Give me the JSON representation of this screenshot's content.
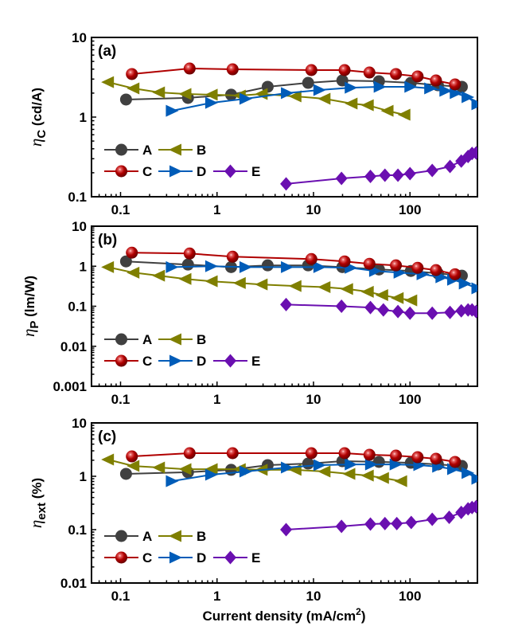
{
  "chart_data": [
    {
      "type": "line",
      "panel": "(a)",
      "ylabel_main": "η",
      "ylabel_sub": "C",
      "ylabel_unit": " (cd/A)",
      "xlabel": "",
      "xscale": "log",
      "yscale": "log",
      "xlim": [
        0.05,
        500
      ],
      "ylim": [
        0.1,
        10
      ],
      "xticks": [
        0.1,
        1,
        10,
        100
      ],
      "xtick_labels": [
        "0.1",
        "1",
        "10",
        "100"
      ],
      "yticks": [
        0.1,
        1,
        10
      ],
      "ytick_labels": [
        "0.1",
        "1",
        "10"
      ],
      "legend": "lower-left",
      "series": [
        {
          "name": "A",
          "color": "#404040",
          "marker": "circle",
          "x": [
            0.114,
            0.5,
            1.4,
            3.35,
            8.8,
            19.9,
            47.7,
            102,
            195,
            345
          ],
          "y": [
            1.66,
            1.74,
            1.91,
            2.4,
            2.69,
            2.88,
            2.82,
            2.69,
            2.51,
            2.4
          ]
        },
        {
          "name": "B",
          "color": "#7f7f00",
          "marker": "triangle-left",
          "x": [
            0.074,
            0.136,
            0.25,
            0.47,
            0.88,
            1.72,
            2.9,
            6.5,
            13.0,
            24.8,
            36.5,
            58.5,
            87.5
          ],
          "y": [
            2.75,
            2.29,
            2.04,
            1.95,
            1.91,
            1.86,
            1.95,
            1.82,
            1.7,
            1.48,
            1.41,
            1.2,
            1.07
          ]
        },
        {
          "name": "C",
          "color": "#b00000",
          "marker": "sphere",
          "x": [
            0.131,
            0.52,
            1.45,
            9.5,
            21.0,
            38.0,
            71.5,
            120,
            186,
            293
          ],
          "y": [
            3.47,
            4.07,
            3.98,
            3.89,
            3.89,
            3.63,
            3.47,
            3.24,
            2.88,
            2.57
          ]
        },
        {
          "name": "D",
          "color": "#005cb8",
          "marker": "triangle-right",
          "x": [
            0.34,
            0.87,
            1.97,
            5.3,
            11.5,
            24.3,
            48.5,
            101,
            162,
            233,
            298,
            395,
            500
          ],
          "y": [
            1.2,
            1.51,
            1.7,
            2.0,
            2.19,
            2.34,
            2.4,
            2.4,
            2.29,
            2.14,
            2.0,
            1.78,
            1.45
          ]
        },
        {
          "name": "E",
          "color": "#6a0fb0",
          "marker": "diamond",
          "x": [
            5.2,
            19.5,
            38.9,
            55,
            75,
            100,
            170,
            260,
            340,
            400,
            440,
            485
          ],
          "y": [
            0.145,
            0.17,
            0.18,
            0.186,
            0.186,
            0.195,
            0.214,
            0.24,
            0.28,
            0.32,
            0.35,
            0.355
          ]
        }
      ]
    },
    {
      "type": "line",
      "panel": "(b)",
      "ylabel_main": "η",
      "ylabel_sub": "P",
      "ylabel_unit": " (lm/W)",
      "xlabel": "",
      "xscale": "log",
      "yscale": "log",
      "xlim": [
        0.05,
        500
      ],
      "ylim": [
        0.001,
        10
      ],
      "xticks": [
        0.1,
        1,
        10,
        100
      ],
      "xtick_labels": [
        "0.1",
        "1",
        "10",
        "100"
      ],
      "yticks": [
        0.001,
        0.01,
        0.1,
        1,
        10
      ],
      "ytick_labels": [
        "0.001",
        "0.01",
        "0.1",
        "1",
        "10"
      ],
      "legend": "lower-left",
      "series": [
        {
          "name": "A",
          "color": "#404040",
          "marker": "circle",
          "x": [
            0.114,
            0.5,
            1.4,
            3.35,
            8.8,
            19.9,
            47.7,
            102,
            195,
            345
          ],
          "y": [
            1.32,
            1.1,
            0.95,
            1.05,
            1.05,
            0.95,
            0.83,
            0.76,
            0.66,
            0.58
          ]
        },
        {
          "name": "B",
          "color": "#7f7f00",
          "marker": "triangle-left",
          "x": [
            0.074,
            0.136,
            0.25,
            0.47,
            0.88,
            1.72,
            2.9,
            6.5,
            13.0,
            22.3,
            36.5,
            51.5,
            74.5,
            103
          ],
          "y": [
            0.95,
            0.69,
            0.58,
            0.48,
            0.42,
            0.38,
            0.35,
            0.32,
            0.3,
            0.27,
            0.23,
            0.19,
            0.16,
            0.14
          ]
        },
        {
          "name": "C",
          "color": "#b00000",
          "marker": "sphere",
          "x": [
            0.131,
            0.52,
            1.45,
            9.5,
            21.0,
            38.0,
            71.5,
            120,
            186,
            293
          ],
          "y": [
            2.18,
            2.08,
            1.73,
            1.51,
            1.32,
            1.15,
            1.05,
            0.91,
            0.8,
            0.63
          ]
        },
        {
          "name": "D",
          "color": "#005cb8",
          "marker": "triangle-right",
          "x": [
            0.34,
            0.87,
            1.97,
            5.3,
            11.5,
            24.3,
            43.5,
            78,
            135,
            212,
            280,
            370,
            500
          ],
          "y": [
            0.95,
            1.0,
            0.95,
            0.95,
            0.95,
            0.91,
            0.76,
            0.69,
            0.63,
            0.53,
            0.46,
            0.37,
            0.28
          ]
        },
        {
          "name": "E",
          "color": "#6a0fb0",
          "marker": "diamond",
          "x": [
            5.2,
            19.5,
            38.9,
            53,
            75,
            100,
            170,
            260,
            340,
            400,
            440,
            485
          ],
          "y": [
            0.11,
            0.1,
            0.093,
            0.081,
            0.074,
            0.067,
            0.067,
            0.07,
            0.077,
            0.081,
            0.081,
            0.074
          ]
        }
      ]
    },
    {
      "type": "line",
      "panel": "(c)",
      "ylabel_main": "η",
      "ylabel_sub": "ext",
      "ylabel_unit": " (%)",
      "xlabel": "Current density (mA/cm²)",
      "xscale": "log",
      "yscale": "log",
      "xlim": [
        0.05,
        500
      ],
      "ylim": [
        0.01,
        10
      ],
      "xticks": [
        0.1,
        1,
        10,
        100
      ],
      "xtick_labels": [
        "0.1",
        "1",
        "10",
        "100"
      ],
      "yticks": [
        0.01,
        0.1,
        1,
        10
      ],
      "ytick_labels": [
        "0.01",
        "0.1",
        "1",
        "10"
      ],
      "legend": "lower-left",
      "series": [
        {
          "name": "A",
          "color": "#404040",
          "marker": "circle",
          "x": [
            0.114,
            0.5,
            1.4,
            3.35,
            8.8,
            19.9,
            47.7,
            102,
            195,
            345
          ],
          "y": [
            1.11,
            1.19,
            1.32,
            1.62,
            1.73,
            1.92,
            1.86,
            1.79,
            1.67,
            1.56
          ]
        },
        {
          "name": "B",
          "color": "#7f7f00",
          "marker": "triangle-left",
          "x": [
            0.074,
            0.136,
            0.25,
            0.47,
            0.88,
            1.72,
            2.9,
            6.5,
            13.0,
            23.5,
            36.5,
            52.5,
            81
          ],
          "y": [
            2.06,
            1.56,
            1.46,
            1.36,
            1.36,
            1.36,
            1.32,
            1.32,
            1.23,
            1.11,
            1.03,
            0.93,
            0.81
          ]
        },
        {
          "name": "C",
          "color": "#b00000",
          "marker": "sphere",
          "x": [
            0.131,
            0.52,
            1.45,
            9.5,
            21.0,
            38.0,
            71.5,
            120,
            186,
            293
          ],
          "y": [
            2.36,
            2.71,
            2.71,
            2.71,
            2.71,
            2.53,
            2.44,
            2.28,
            2.13,
            1.86
          ]
        },
        {
          "name": "D",
          "color": "#005cb8",
          "marker": "triangle-right",
          "x": [
            0.34,
            0.87,
            1.97,
            5.3,
            11.5,
            24.3,
            39.5,
            71,
            125,
            196,
            280,
            395,
            500
          ],
          "y": [
            0.81,
            1.07,
            1.23,
            1.46,
            1.62,
            1.67,
            1.67,
            1.67,
            1.62,
            1.51,
            1.36,
            1.15,
            0.9
          ]
        },
        {
          "name": "E",
          "color": "#6a0fb0",
          "marker": "diamond",
          "x": [
            5.2,
            19.5,
            38.9,
            55,
            73,
            103,
            170,
            255,
            340,
            400,
            440,
            485
          ],
          "y": [
            0.1,
            0.115,
            0.127,
            0.13,
            0.13,
            0.136,
            0.156,
            0.17,
            0.21,
            0.245,
            0.26,
            0.27
          ]
        }
      ]
    }
  ]
}
